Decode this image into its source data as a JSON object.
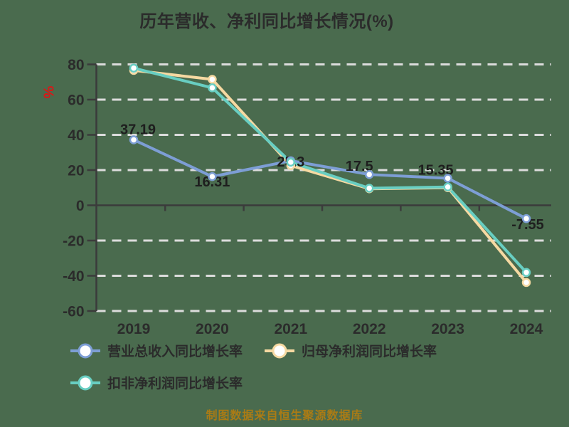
{
  "title": "历年营收、净利同比增长情况(%)",
  "footer": "制图数据来自恒生聚源数据库",
  "y_axis_unit": "%",
  "colors": {
    "background": "#4a6b4e",
    "text": "#2b2b2b",
    "grid": "#dcdcdc",
    "axis": "#3b3b3b",
    "unit_red": "#e01414",
    "footer_gold": "#aa7b15",
    "marker_fill": "#ffffff",
    "series_revenue": "#7d9ed5",
    "series_net_profit": "#f6d9a2",
    "series_non_gaap": "#68cec2"
  },
  "chart_data": {
    "type": "line",
    "title": "历年营收、净利同比增长情况(%)",
    "categories": [
      "2019",
      "2020",
      "2021",
      "2022",
      "2023",
      "2024"
    ],
    "series": [
      {
        "name": "营业总收入同比增长率",
        "color_key": "series_revenue",
        "values": [
          37.19,
          16.31,
          25.3,
          17.5,
          15.35,
          -7.55
        ],
        "show_labels": true
      },
      {
        "name": "归母净利润同比增长率",
        "color_key": "series_net_profit",
        "values": [
          76.6,
          71.5,
          22.6,
          9.4,
          10.0,
          -43.8
        ],
        "show_labels": false
      },
      {
        "name": "扣非净利润同比增长率",
        "color_key": "series_non_gaap",
        "values": [
          77.9,
          66.7,
          24.5,
          9.7,
          10.4,
          -38.1
        ],
        "show_labels": false
      }
    ],
    "ylabel": "%",
    "y_ticks": [
      80,
      60,
      40,
      20,
      0,
      -20,
      -40,
      -60
    ],
    "ylim": [
      -60,
      80
    ],
    "grid": "dashed-white-horizontal",
    "legend_position": "bottom-left"
  },
  "legend": {
    "row1": [
      {
        "label": "营业总收入同比增长率",
        "color_key": "series_revenue"
      },
      {
        "label": "归母净利润同比增长率",
        "color_key": "series_net_profit"
      }
    ],
    "row2": [
      {
        "label": "扣非净利润同比增长率",
        "color_key": "series_non_gaap"
      }
    ]
  }
}
